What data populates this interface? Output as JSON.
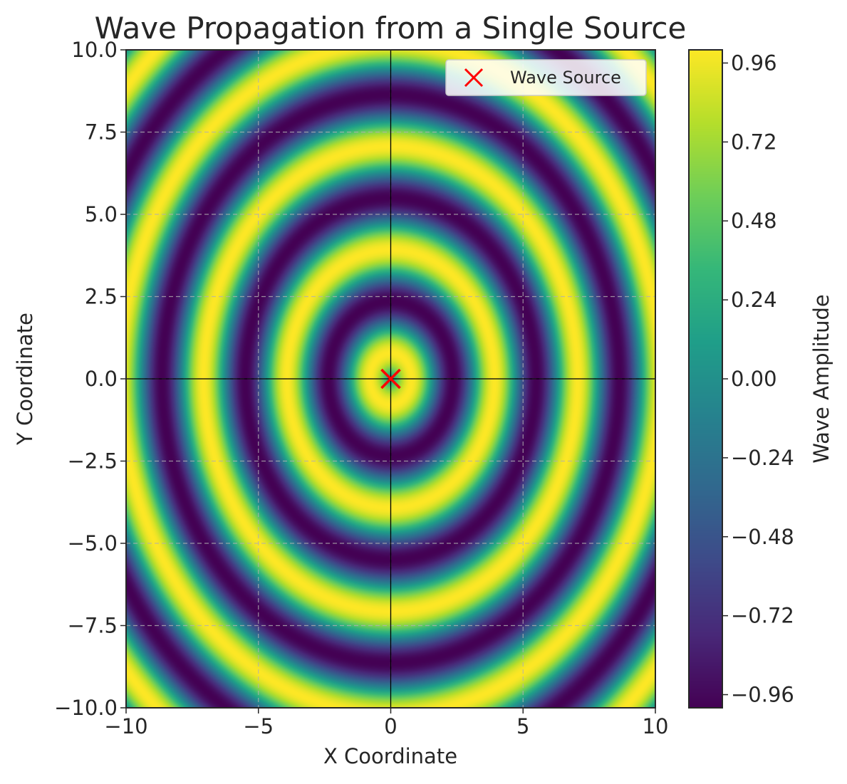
{
  "chart_data": {
    "type": "heatmap",
    "title": "Wave Propagation from a Single Source",
    "xlabel": "X Coordinate",
    "ylabel": "Y Coordinate",
    "xlim": [
      -10,
      10
    ],
    "ylim": [
      -10,
      10
    ],
    "x_ticks": [
      -10,
      -5,
      0,
      5,
      10
    ],
    "x_tick_labels": [
      "−10",
      "−5",
      "0",
      "5",
      "10"
    ],
    "y_ticks": [
      10.0,
      7.5,
      5.0,
      2.5,
      0.0,
      -2.5,
      -5.0,
      -7.5,
      -10.0
    ],
    "y_tick_labels": [
      "10.0",
      "7.5",
      "5.0",
      "2.5",
      "0.0",
      "−2.5",
      "−5.0",
      "−7.5",
      "−10.0"
    ],
    "field": {
      "formula": "sin(2*r)",
      "source": [
        0,
        0
      ],
      "colormap": "viridis",
      "vmin": -1,
      "vmax": 1
    },
    "source_point": {
      "x": 0,
      "y": 0,
      "marker": "x",
      "color": "#ff0000"
    },
    "reference_lines": {
      "x": 0,
      "y": 0,
      "color": "#000000"
    },
    "grid": true,
    "legend": {
      "position": "top-right",
      "entries": [
        {
          "label": "Wave Source",
          "marker": "x",
          "color": "#ff0000"
        }
      ]
    },
    "colorbar": {
      "label": "Wave Amplitude",
      "ticks": [
        0.96,
        0.72,
        0.48,
        0.24,
        0.0,
        -0.24,
        -0.48,
        -0.72,
        -0.96
      ],
      "tick_labels": [
        "0.96",
        "0.72",
        "0.48",
        "0.24",
        "0.00",
        "−0.24",
        "−0.48",
        "−0.72",
        "−0.96"
      ],
      "range": [
        -1,
        1
      ]
    }
  }
}
